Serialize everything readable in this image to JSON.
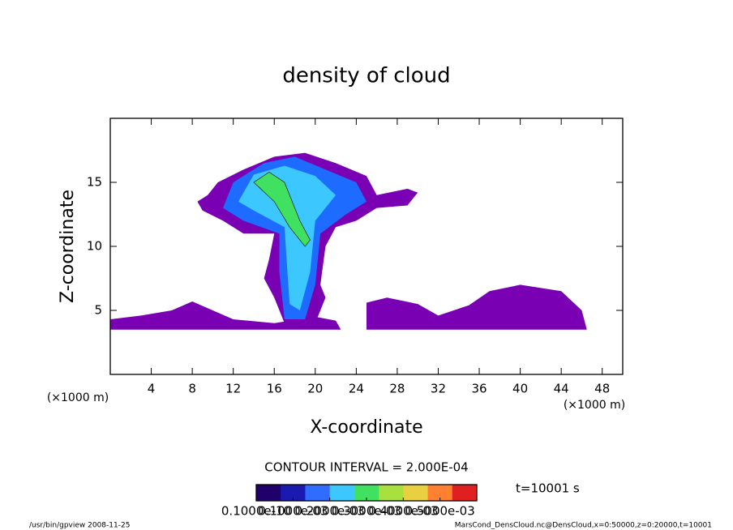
{
  "chart_data": {
    "type": "contour",
    "title": "density of cloud",
    "x_label": "X-coordinate",
    "y_label": "Z-coordinate",
    "x_unit": "(×1000 m)",
    "y_unit": "(×1000 m)",
    "xlim": [
      0,
      50
    ],
    "ylim": [
      0,
      20
    ],
    "xticks": [
      4,
      8,
      12,
      16,
      20,
      24,
      28,
      32,
      36,
      40,
      44,
      48
    ],
    "yticks": [
      5,
      10,
      15
    ],
    "regions": [
      {
        "level": 1e-05,
        "color": "#7a00b4",
        "polygon": [
          [
            0,
            3.5
          ],
          [
            0,
            4.3
          ],
          [
            3,
            4.6
          ],
          [
            6,
            5
          ],
          [
            8,
            5.7
          ],
          [
            10,
            5
          ],
          [
            12,
            4.3
          ],
          [
            16,
            4
          ],
          [
            20,
            4.5
          ],
          [
            22,
            4.2
          ],
          [
            22.5,
            3.5
          ]
        ]
      },
      {
        "level": 1e-05,
        "color": "#7a00b4",
        "polygon": [
          [
            25,
            3.5
          ],
          [
            25,
            5.6
          ],
          [
            27,
            6
          ],
          [
            30,
            5.5
          ],
          [
            32,
            4.6
          ],
          [
            35,
            5.4
          ],
          [
            37,
            6.5
          ],
          [
            40,
            7
          ],
          [
            44,
            6.5
          ],
          [
            46,
            5
          ],
          [
            46.5,
            3.5
          ]
        ]
      },
      {
        "level": 1e-05,
        "color": "#7a00b4",
        "polygon": [
          [
            8.5,
            13.5
          ],
          [
            9.5,
            14
          ],
          [
            10.5,
            15
          ],
          [
            13,
            16
          ],
          [
            16,
            17
          ],
          [
            19,
            17.3
          ],
          [
            22,
            16.5
          ],
          [
            25,
            15.5
          ],
          [
            26,
            14
          ],
          [
            29,
            14.5
          ],
          [
            30,
            14.2
          ],
          [
            29,
            13.2
          ],
          [
            26,
            13
          ],
          [
            24,
            12
          ],
          [
            22,
            11.5
          ],
          [
            21,
            10
          ],
          [
            20.5,
            7
          ],
          [
            21,
            6
          ],
          [
            20,
            4
          ],
          [
            17,
            4
          ],
          [
            16,
            6
          ],
          [
            15,
            7.5
          ],
          [
            15.5,
            9
          ],
          [
            16,
            11
          ],
          [
            13,
            11
          ],
          [
            11,
            12
          ],
          [
            9,
            12.8
          ]
        ]
      },
      {
        "level": 0.0001,
        "color": "#1e6cff",
        "polygon": [
          [
            11,
            13
          ],
          [
            12,
            15
          ],
          [
            15,
            16.5
          ],
          [
            18,
            17
          ],
          [
            21,
            16
          ],
          [
            24,
            15
          ],
          [
            25,
            13.5
          ],
          [
            23,
            12.5
          ],
          [
            20.5,
            11
          ],
          [
            20,
            7
          ],
          [
            19,
            4.3
          ],
          [
            17,
            4.3
          ],
          [
            16.5,
            8
          ],
          [
            16.5,
            11
          ],
          [
            13,
            12
          ]
        ]
      },
      {
        "level": 0.0002,
        "color": "#3cc8ff",
        "polygon": [
          [
            12.5,
            13.5
          ],
          [
            14,
            15.6
          ],
          [
            17,
            16.3
          ],
          [
            20,
            15.5
          ],
          [
            22,
            14
          ],
          [
            20,
            12
          ],
          [
            19.5,
            8
          ],
          [
            18.5,
            5
          ],
          [
            17.5,
            5.5
          ],
          [
            17.2,
            9
          ],
          [
            17,
            11.5
          ],
          [
            14,
            12.8
          ]
        ]
      },
      {
        "level": 0.0003,
        "color": "#40e060",
        "polygon": [
          [
            14,
            15
          ],
          [
            15.5,
            15.8
          ],
          [
            17,
            15
          ],
          [
            18.5,
            12
          ],
          [
            19.5,
            10.5
          ],
          [
            19,
            10
          ],
          [
            17.5,
            11.5
          ],
          [
            16,
            13.5
          ]
        ]
      }
    ],
    "contour_interval": "CONTOUR INTERVAL = 2.000E-04",
    "time_label": "t=10001 s",
    "colorbar": {
      "colors": [
        "#20006a",
        "#1a1ab0",
        "#2f6cff",
        "#3cc8ff",
        "#40e060",
        "#a8e040",
        "#e8d040",
        "#ff8030",
        "#e02020"
      ],
      "ticks": [
        {
          "value": 1e-11,
          "label": "0.1000e-10"
        },
        {
          "value": 0.0001,
          "label": "0.1000e-03"
        },
        {
          "value": 0.0002,
          "label": "0.2000e-03"
        },
        {
          "value": 0.0003,
          "label": "0.3000e-03"
        },
        {
          "value": 0.0004,
          "label": "0.4000e-03"
        },
        {
          "value": 0.0005,
          "label": "0.5000e-03"
        }
      ],
      "lim": [
        0,
        0.0006
      ]
    },
    "footer_left": "/usr/bin/gpview  2008-11-25",
    "footer_right": "MarsCond_DensCloud.nc@DensCloud,x=0:50000,z=0:20000,t=10001"
  }
}
